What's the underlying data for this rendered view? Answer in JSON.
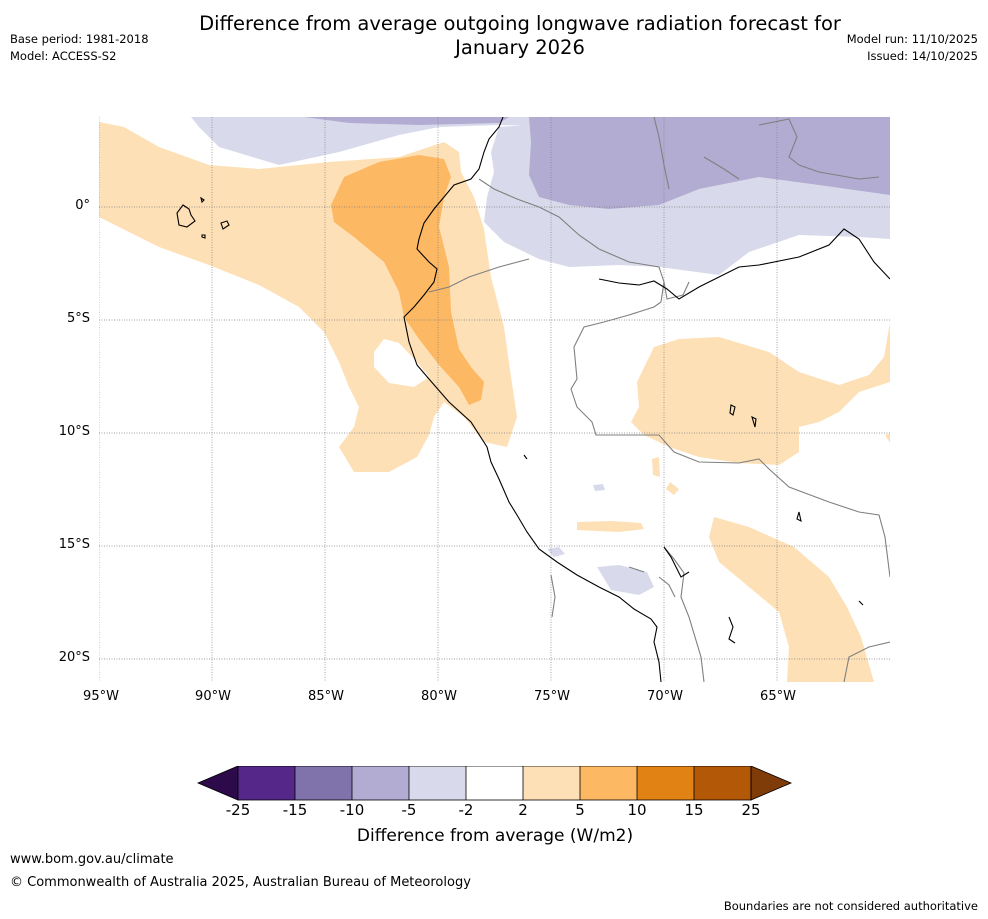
{
  "header": {
    "title_line1": "Difference from average outgoing longwave radiation forecast for",
    "title_line2": "January 2026",
    "base_period": "Base period: 1981-2018",
    "model": "Model: ACCESS-S2",
    "model_run": "Model run: 11/10/2025",
    "issued": "Issued: 14/10/2025"
  },
  "map": {
    "lat_labels": [
      "0°",
      "5°S",
      "10°S",
      "15°S",
      "20°S"
    ],
    "lon_labels": [
      "95°W",
      "90°W",
      "85°W",
      "80°W",
      "75°W",
      "70°W",
      "65°W"
    ],
    "colors": {
      "neg_strong": "#2d0a4a",
      "neg_25": "#542788",
      "neg_15": "#8073ac",
      "neg_10": "#b2abd2",
      "neg_5": "#d8daeb",
      "neutral": "#ffffff",
      "pos_5": "#fee0b6",
      "pos_10": "#fdb863",
      "pos_15": "#e08214",
      "pos_25": "#b35806",
      "pos_strong": "#7f3b08",
      "coast": "#000000",
      "border": "#808080",
      "grid": "#808080"
    }
  },
  "colorbar": {
    "ticks": [
      "-25",
      "-15",
      "-10",
      "-5",
      "-2",
      "2",
      "5",
      "10",
      "15",
      "25"
    ],
    "label": "Difference from average (W/m2)"
  },
  "footer": {
    "url": "www.bom.gov.au/climate",
    "copyright": "© Commonwealth of Australia 2025, Australian Bureau of Meteorology",
    "note": "Boundaries are not considered authoritative"
  }
}
